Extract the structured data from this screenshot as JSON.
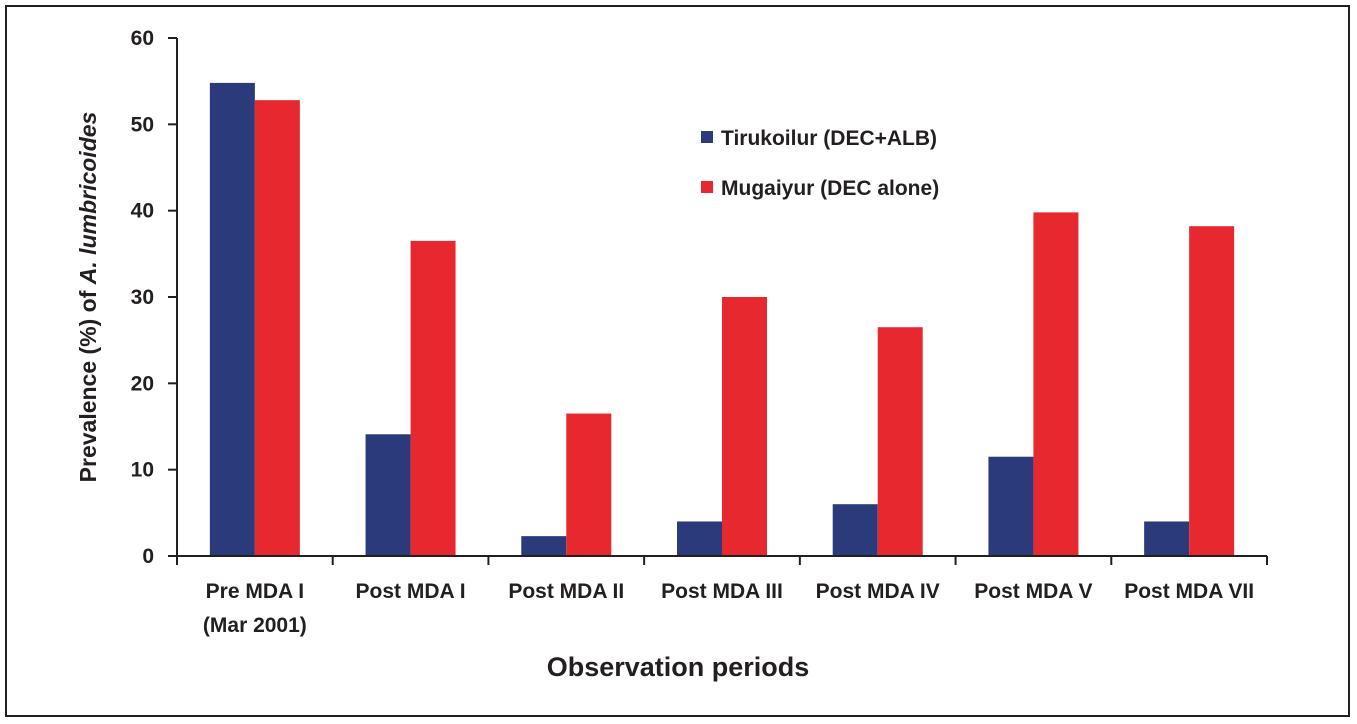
{
  "chart_data": {
    "type": "bar",
    "categories": [
      [
        "Pre MDA I",
        "(Mar 2001)"
      ],
      [
        "Post MDA I"
      ],
      [
        "Post MDA II"
      ],
      [
        "Post MDA III"
      ],
      [
        "Post MDA IV"
      ],
      [
        "Post MDA V"
      ],
      [
        "Post MDA VII"
      ]
    ],
    "series": [
      {
        "name": "Tirukoilur (DEC+ALB)",
        "color": "#2b3a7a",
        "values": [
          54.8,
          14.1,
          2.3,
          4.0,
          6.0,
          11.5,
          4.0
        ]
      },
      {
        "name": "Mugaiyur (DEC alone)",
        "color": "#e8282f",
        "values": [
          52.8,
          36.5,
          16.5,
          30.0,
          26.5,
          39.8,
          38.2
        ]
      }
    ],
    "xlabel": "Observation periods",
    "ylabel_prefix": "Prevalence (%) of ",
    "ylabel_italic": "A. lumbricoides",
    "ylim": [
      0,
      60
    ],
    "yticks": [
      0,
      10,
      20,
      30,
      40,
      50,
      60
    ],
    "grid": false,
    "legend_position": "top-right"
  }
}
